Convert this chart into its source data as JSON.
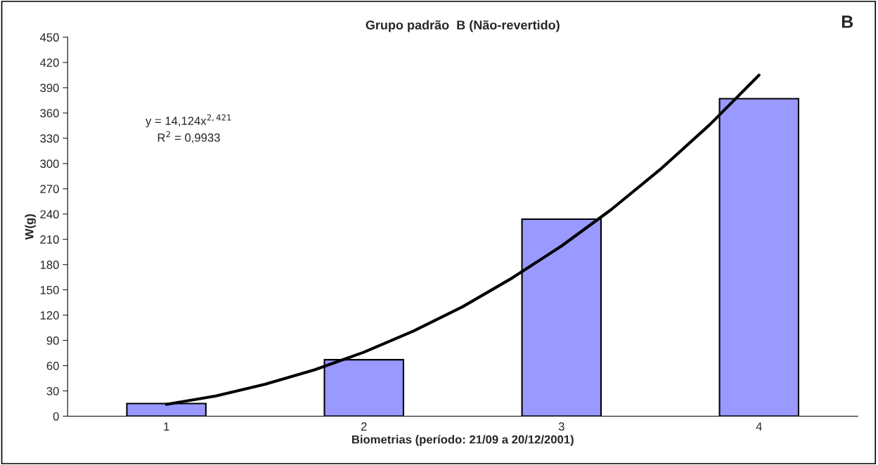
{
  "chart_data": {
    "type": "bar",
    "title": "Grupo padrão  B (Não-revertido)",
    "xlabel": "Biometrias (período: 21/09 a 20/12/2001)",
    "ylabel": "W(g)",
    "xlim": [
      0.5,
      4.5
    ],
    "xticks": [
      1,
      2,
      3,
      4
    ],
    "ylim": [
      0,
      450
    ],
    "yticks": [
      0,
      30,
      60,
      90,
      120,
      150,
      180,
      210,
      240,
      270,
      300,
      330,
      360,
      390,
      420,
      450
    ],
    "grid": false,
    "legend": false,
    "series": [
      {
        "color": "#9999ff",
        "x": [
          1,
          2,
          3,
          4
        ],
        "values": [
          15,
          67,
          234,
          377
        ]
      },
      {
        "type": "line",
        "color": "#000000",
        "marker": "none",
        "line_style": "solid",
        "x": [
          1,
          1.25,
          1.5,
          1.75,
          2,
          2.25,
          2.5,
          2.75,
          3,
          3.25,
          3.5,
          3.75,
          4
        ],
        "values": [
          14,
          24,
          38,
          55,
          76,
          101,
          130,
          164,
          202,
          245,
          293,
          346,
          405
        ]
      }
    ],
    "annotations": [
      "B",
      "y = 14,124x$^{2,421}$",
      "R$^{2}$ = 0,9933"
    ]
  }
}
